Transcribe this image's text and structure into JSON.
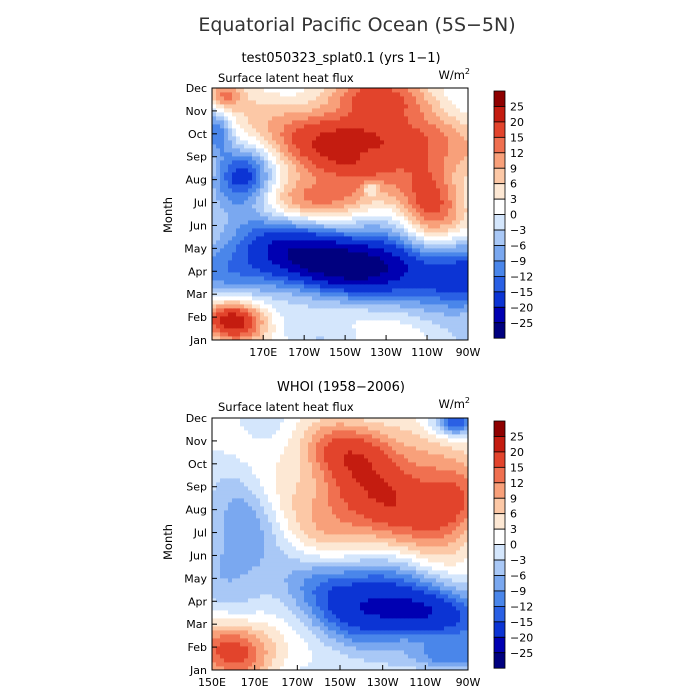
{
  "figure": {
    "title": "Equatorial Pacific Ocean (5S−5N)"
  },
  "colors": {
    "levels": [
      "#00007f",
      "#0000b2",
      "#0c34d4",
      "#2a60e4",
      "#4a86ea",
      "#7aa8f0",
      "#a9c8f6",
      "#d4e6fc",
      "#ffffff",
      "#fde8d4",
      "#fcc8a6",
      "#f8a07a",
      "#f07050",
      "#e2442c",
      "#c41c10",
      "#8e0000"
    ],
    "background": "#ffffff"
  },
  "chart_data": [
    {
      "type": "heatmap",
      "title": "test050323_splat0.1 (yrs 1−1)",
      "variable": "Surface latent heat flux",
      "units": "W/m",
      "units_sup": "2",
      "ylabel": "Month",
      "xlabel": "",
      "x_ticks": [
        "170E",
        "170W",
        "150W",
        "130W",
        "110W",
        "90W"
      ],
      "y_ticks": [
        "Jan",
        "Feb",
        "Mar",
        "Apr",
        "May",
        "Jun",
        "Jul",
        "Aug",
        "Sep",
        "Oct",
        "Nov",
        "Dec"
      ],
      "colorbar_labels": [
        "25",
        "20",
        "15",
        "12",
        "9",
        "6",
        "3",
        "0",
        "−3",
        "−6",
        "−9",
        "−12",
        "−15",
        "−20",
        "−25"
      ],
      "lon_range": [
        145,
        270
      ],
      "month_range": [
        1,
        12
      ]
    },
    {
      "type": "heatmap",
      "title": "WHOI (1958−2006)",
      "variable": "Surface latent heat flux",
      "units": "W/m",
      "units_sup": "2",
      "ylabel": "Month",
      "xlabel": "",
      "x_ticks": [
        "150E",
        "170E",
        "170W",
        "150W",
        "130W",
        "110W",
        "90W"
      ],
      "y_ticks": [
        "Jan",
        "Feb",
        "Mar",
        "Apr",
        "May",
        "Jun",
        "Jul",
        "Aug",
        "Sep",
        "Oct",
        "Nov",
        "Dec"
      ],
      "colorbar_labels": [
        "25",
        "20",
        "15",
        "12",
        "9",
        "6",
        "3",
        "0",
        "−3",
        "−6",
        "−9",
        "−12",
        "−15",
        "−20",
        "−25"
      ],
      "lon_range": [
        150,
        270
      ],
      "month_range": [
        1,
        12
      ]
    }
  ]
}
